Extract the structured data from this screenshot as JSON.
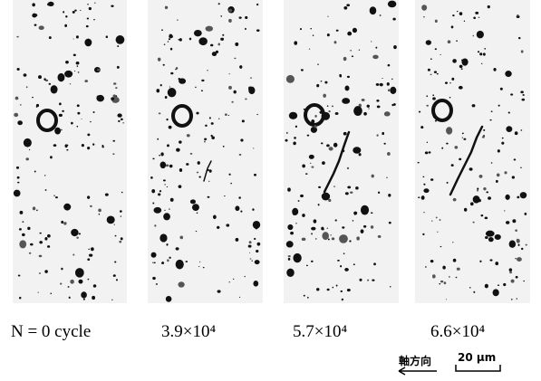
{
  "panels": [
    {
      "label": "N = 0 cycle"
    },
    {
      "label": "3.9×10⁴"
    },
    {
      "label": "5.7×10⁴"
    },
    {
      "label": "6.6×10⁴"
    }
  ],
  "direction_label": "軸方向",
  "scale_label": "20 μm"
}
